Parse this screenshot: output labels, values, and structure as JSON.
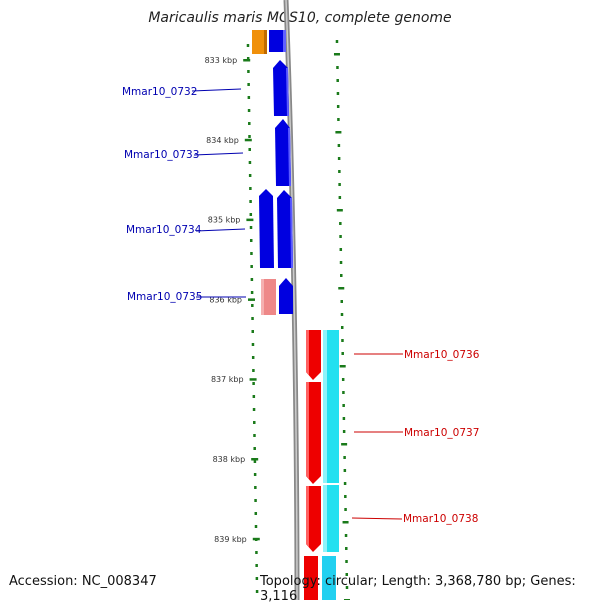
{
  "title": "Maricaulis maris MCS10, complete genome",
  "footer": {
    "accession": "Accession: NC_008347",
    "topology": "Topology: circular; Length: 3,368,780 bp; Genes: 3,116"
  },
  "ticks": [
    {
      "label": "833 kbp",
      "pos_kbp": 833
    },
    {
      "label": "834 kbp",
      "pos_kbp": 834
    },
    {
      "label": "835 kbp",
      "pos_kbp": 835
    },
    {
      "label": "836 kbp",
      "pos_kbp": 836
    },
    {
      "label": "837 kbp",
      "pos_kbp": 837
    },
    {
      "label": "838 kbp",
      "pos_kbp": 838
    },
    {
      "label": "839 kbp",
      "pos_kbp": 839
    }
  ],
  "genes": [
    {
      "name": "Mmar10_0732",
      "strand": "+",
      "color": "#0000e0"
    },
    {
      "name": "Mmar10_0733",
      "strand": "+",
      "color": "#0000e0"
    },
    {
      "name": "Mmar10_0734",
      "strand": "+",
      "color": "#0000e0"
    },
    {
      "name": "Mmar10_0735",
      "strand": "+",
      "color": "#0000e0"
    },
    {
      "name": "Mmar10_0736",
      "strand": "-",
      "color": "#e00000"
    },
    {
      "name": "Mmar10_0737",
      "strand": "-",
      "color": "#e00000"
    },
    {
      "name": "Mmar10_0738",
      "strand": "-",
      "color": "#e00000"
    }
  ],
  "colors": {
    "forward_label": "#0000b0",
    "reverse_label": "#cc0000",
    "tick": "#1a7a1a",
    "backbone": "#777777",
    "forward_cds": "#0000e0",
    "reverse_cds": "#ee0000",
    "forward_orange": "#f0900a",
    "pink": "#ee8888",
    "cyan": "#22e0f0"
  }
}
